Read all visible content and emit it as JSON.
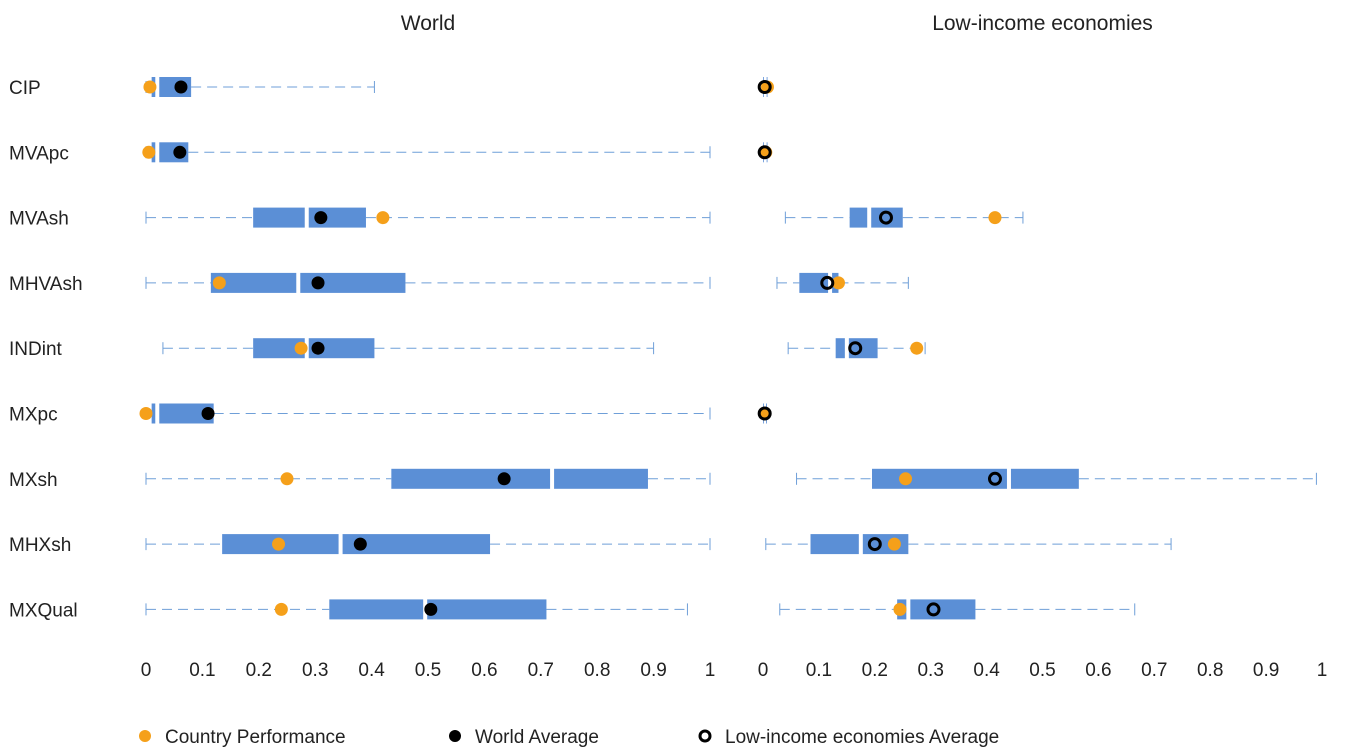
{
  "chart_data": {
    "type": "boxplot",
    "categories": [
      "CIP",
      "MVApc",
      "MVAsh",
      "MHVAsh",
      "INDint",
      "MXpc",
      "MXsh",
      "MHXsh",
      "MXQual"
    ],
    "xlim": [
      0,
      1
    ],
    "ticks": [
      "0",
      "0.1",
      "0.2",
      "0.3",
      "0.4",
      "0.5",
      "0.6",
      "0.7",
      "0.8",
      "0.9",
      "1"
    ],
    "colors": {
      "box": "#5b8fd6",
      "whisker": "#6f9fd8",
      "country": "#f5a01a",
      "average": "#000000"
    },
    "legend": {
      "placement": "bottom",
      "items": [
        {
          "label": "Country Performance",
          "marker": "filled-orange-circle"
        },
        {
          "label": "World Average",
          "marker": "filled-black-circle"
        },
        {
          "label": "Low-income economies Average",
          "marker": "hollow-black-circle"
        }
      ]
    },
    "panels": [
      {
        "title": "World",
        "average_marker": "filled",
        "rows": [
          {
            "min": 0.0,
            "q1": 0.01,
            "median": 0.02,
            "q3": 0.08,
            "max": 0.405,
            "country": 0.007,
            "average": 0.062
          },
          {
            "min": 0.0,
            "q1": 0.01,
            "median": 0.02,
            "q3": 0.075,
            "max": 1.0,
            "country": 0.005,
            "average": 0.06
          },
          {
            "min": 0.0,
            "q1": 0.19,
            "median": 0.285,
            "q3": 0.39,
            "max": 1.0,
            "country": 0.42,
            "average": 0.31
          },
          {
            "min": 0.0,
            "q1": 0.115,
            "median": 0.27,
            "q3": 0.46,
            "max": 1.0,
            "country": 0.13,
            "average": 0.305
          },
          {
            "min": 0.03,
            "q1": 0.19,
            "median": 0.285,
            "q3": 0.405,
            "max": 0.9,
            "country": 0.275,
            "average": 0.305
          },
          {
            "min": 0.0,
            "q1": 0.01,
            "median": 0.02,
            "q3": 0.12,
            "max": 1.0,
            "country": 0.0,
            "average": 0.11
          },
          {
            "min": 0.0,
            "q1": 0.435,
            "median": 0.72,
            "q3": 0.89,
            "max": 1.0,
            "country": 0.25,
            "average": 0.635
          },
          {
            "min": 0.0,
            "q1": 0.135,
            "median": 0.345,
            "q3": 0.61,
            "max": 1.0,
            "country": 0.235,
            "average": 0.38
          },
          {
            "min": 0.0,
            "q1": 0.325,
            "median": 0.495,
            "q3": 0.71,
            "max": 0.96,
            "country": 0.24,
            "average": 0.505
          }
        ]
      },
      {
        "title": "Low-income economies",
        "average_marker": "hollow",
        "rows": [
          {
            "min": 0.0,
            "q1": 0.0,
            "median": 0.003,
            "q3": 0.007,
            "max": 0.008,
            "country": 0.008,
            "average": 0.003
          },
          {
            "min": 0.0,
            "q1": 0.0,
            "median": 0.003,
            "q3": 0.007,
            "max": 0.008,
            "country": 0.005,
            "average": 0.003
          },
          {
            "min": 0.04,
            "q1": 0.155,
            "median": 0.19,
            "q3": 0.25,
            "max": 0.465,
            "country": 0.415,
            "average": 0.22
          },
          {
            "min": 0.025,
            "q1": 0.065,
            "median": 0.12,
            "q3": 0.135,
            "max": 0.26,
            "country": 0.135,
            "average": 0.115
          },
          {
            "min": 0.045,
            "q1": 0.13,
            "median": 0.15,
            "q3": 0.205,
            "max": 0.29,
            "country": 0.275,
            "average": 0.165
          },
          {
            "min": 0.0,
            "q1": 0.0,
            "median": 0.002,
            "q3": 0.006,
            "max": 0.007,
            "country": 0.003,
            "average": 0.003
          },
          {
            "min": 0.06,
            "q1": 0.195,
            "median": 0.44,
            "q3": 0.565,
            "max": 0.99,
            "country": 0.255,
            "average": 0.415
          },
          {
            "min": 0.005,
            "q1": 0.085,
            "median": 0.175,
            "q3": 0.26,
            "max": 0.73,
            "country": 0.235,
            "average": 0.2
          },
          {
            "min": 0.03,
            "q1": 0.24,
            "median": 0.26,
            "q3": 0.38,
            "max": 0.665,
            "country": 0.245,
            "average": 0.305
          }
        ]
      }
    ]
  }
}
